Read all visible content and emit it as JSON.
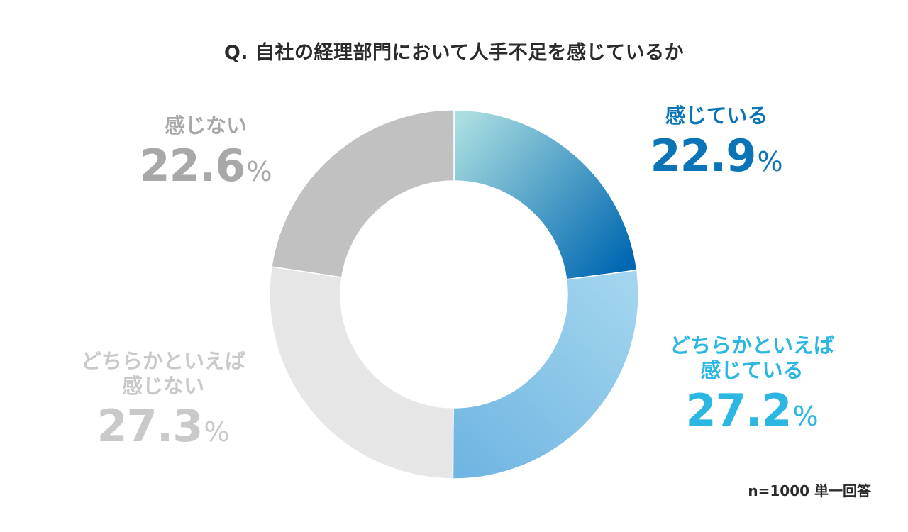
{
  "chart_data": {
    "type": "pie",
    "donut": true,
    "title": "Q. 自社の経理部門において人手不足を感じているか",
    "unit": "%",
    "start_angle_deg": 0,
    "direction": "clockwise",
    "slices": [
      {
        "label": "感じている",
        "label_lines": [
          "感じている"
        ],
        "value": 22.9,
        "color_start": "#a9dde0",
        "color_end": "#0068b1",
        "text_color": "#0b74b7"
      },
      {
        "label": "どちらかといえば感じている",
        "label_lines": [
          "どちらかといえば",
          "感じている"
        ],
        "value": 27.2,
        "color_start": "#a3d5ee",
        "color_end": "#70b6e2",
        "text_color": "#2cb6e2"
      },
      {
        "label": "どちらかといえば感じない",
        "label_lines": [
          "どちらかといえば",
          "感じない"
        ],
        "value": 27.3,
        "color_start": "#e6e6e6",
        "color_end": "#e6e6e6",
        "text_color": "#c9c9c9"
      },
      {
        "label": "感じない",
        "label_lines": [
          "感じない"
        ],
        "value": 22.6,
        "color_start": "#c1c1c1",
        "color_end": "#c1c1c1",
        "text_color": "#a8a8a8"
      }
    ],
    "note": "n=1000 単一回答"
  }
}
